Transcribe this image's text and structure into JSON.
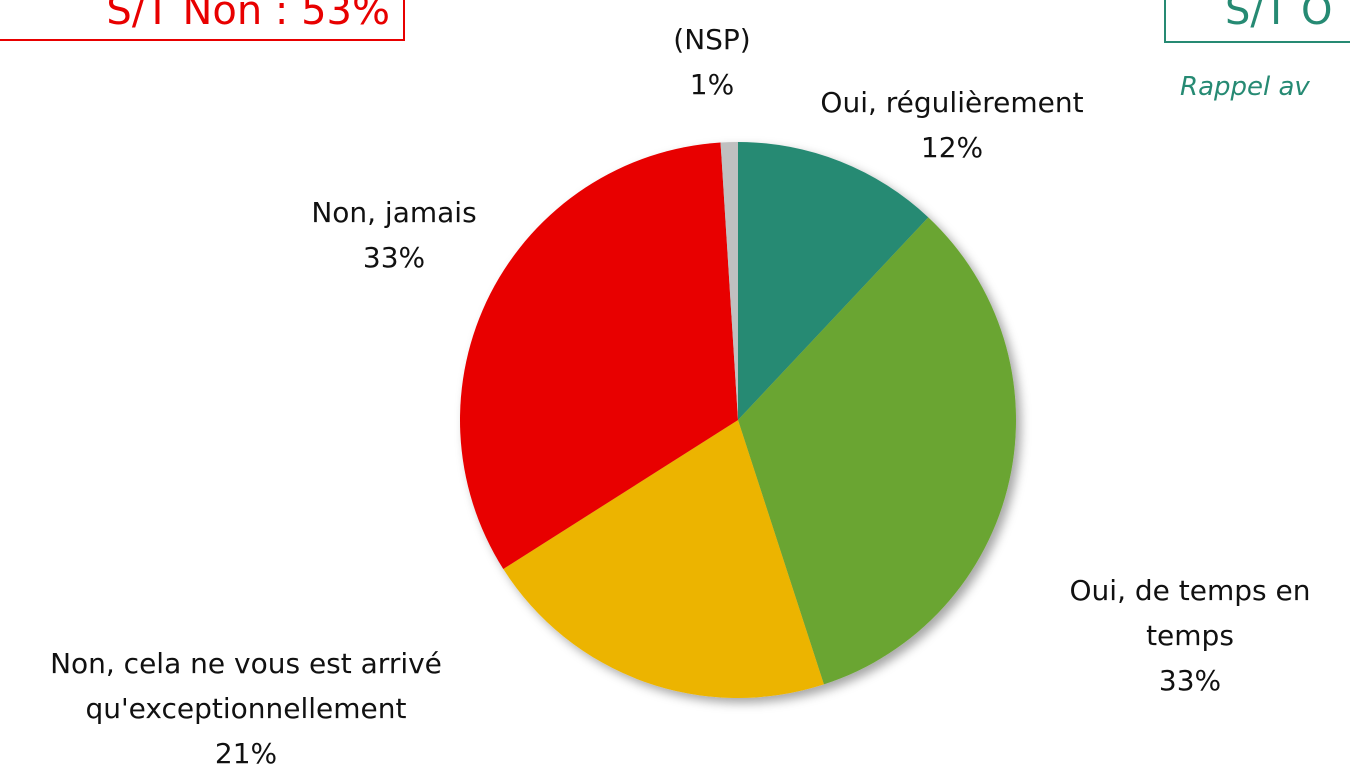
{
  "chart_data": {
    "type": "pie",
    "annotations": [
      "S/T Non : 53%",
      "S/T O",
      "Rappel av"
    ],
    "categories": [
      "Oui, régulièrement",
      "Oui, de temps en temps",
      "Non, cela ne vous est arrivé qu'exceptionnellement",
      "Non, jamais",
      "(NSP)"
    ],
    "values": [
      12,
      33,
      21,
      33,
      1
    ],
    "value_labels": [
      "12%",
      "33%",
      "21%",
      "33%",
      "1%"
    ],
    "colors": [
      "#268a73",
      "#6ba531",
      "#ecb400",
      "#e80000",
      "#c0c0c0"
    ]
  }
}
